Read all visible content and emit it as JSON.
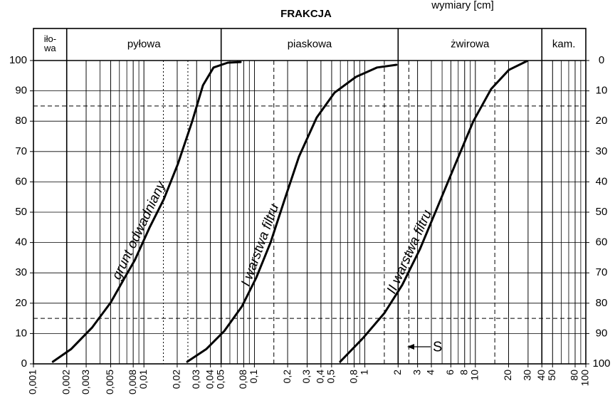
{
  "chart_data": {
    "type": "line",
    "title": "FRAKCJA",
    "subtitle": "wymiary [cm]",
    "log_x": true,
    "xlim": [
      0.001,
      100
    ],
    "xticks": [
      {
        "value": 0.001,
        "label": "0,001"
      },
      {
        "value": 0.002,
        "label": "0,002"
      },
      {
        "value": 0.003,
        "label": "0,003"
      },
      {
        "value": 0.005,
        "label": "0,005"
      },
      {
        "value": 0.008,
        "label": "0,008"
      },
      {
        "value": 0.01,
        "label": "0,01"
      },
      {
        "value": 0.02,
        "label": "0,02"
      },
      {
        "value": 0.03,
        "label": "0,03"
      },
      {
        "value": 0.04,
        "label": "0,04"
      },
      {
        "value": 0.05,
        "label": "0,05"
      },
      {
        "value": 0.08,
        "label": "0,08"
      },
      {
        "value": 0.1,
        "label": "0,1"
      },
      {
        "value": 0.2,
        "label": "0,2"
      },
      {
        "value": 0.3,
        "label": "0,3"
      },
      {
        "value": 0.4,
        "label": "0,4"
      },
      {
        "value": 0.5,
        "label": "0,5"
      },
      {
        "value": 0.8,
        "label": "0,8"
      },
      1,
      2,
      3,
      4,
      6,
      8,
      10,
      20,
      30,
      40,
      50,
      80,
      100
    ],
    "ylim": [
      0,
      100
    ],
    "yticks": [
      0,
      10,
      20,
      30,
      40,
      50,
      60,
      70,
      80,
      90,
      100
    ],
    "y2lim": [
      100,
      0
    ],
    "y2ticks": [
      0,
      10,
      20,
      30,
      40,
      50,
      60,
      70,
      80,
      90,
      100
    ],
    "grid": true,
    "fractions": [
      {
        "label": "iło-\nwa",
        "from": 0.001,
        "to": 0.002
      },
      {
        "label": "pyłowa",
        "from": 0.002,
        "to": 0.05
      },
      {
        "label": "piaskowa",
        "from": 0.05,
        "to": 2
      },
      {
        "label": "żwirowa",
        "from": 2,
        "to": 40
      },
      {
        "label": "kam.",
        "from": 40,
        "to": 100
      }
    ],
    "hlines": [
      15,
      85
    ],
    "vlines": [
      0.015,
      0.025,
      0.15,
      1.5,
      2.5,
      15
    ],
    "annotation": "S",
    "series": [
      {
        "name": "grunt odwadniany",
        "color": "#000000",
        "x": [
          0.0015,
          0.0022,
          0.0034,
          0.005,
          0.0067,
          0.0083,
          0.0112,
          0.0151,
          0.0203,
          0.0274,
          0.0342,
          0.0427,
          0.0574,
          0.075
        ],
        "values": [
          0.7,
          4.9,
          12,
          20.2,
          28.4,
          34.3,
          44.8,
          54.2,
          65.9,
          80,
          91.8,
          97.7,
          99.3,
          99.5
        ]
      },
      {
        "name": "I warstwa filtru",
        "color": "#000000",
        "x": [
          0.0247,
          0.0368,
          0.0533,
          0.0773,
          0.104,
          0.14,
          0.188,
          0.253,
          0.366,
          0.531,
          0.829,
          1.29,
          1.93
        ],
        "values": [
          0.7,
          4.9,
          10.8,
          19,
          28.4,
          40,
          54.2,
          68.3,
          81.2,
          89.4,
          94.6,
          97.7,
          98.6
        ]
      },
      {
        "name": "II warstwa filtru",
        "color": "#000000",
        "x": [
          0.598,
          0.962,
          1.5,
          2.18,
          3.15,
          4.57,
          6.62,
          9.6,
          13.9,
          20.1,
          29.2
        ],
        "values": [
          0.7,
          8.5,
          16.7,
          26,
          37.8,
          51.9,
          66,
          80,
          90.6,
          96.9,
          99.8
        ]
      }
    ]
  }
}
